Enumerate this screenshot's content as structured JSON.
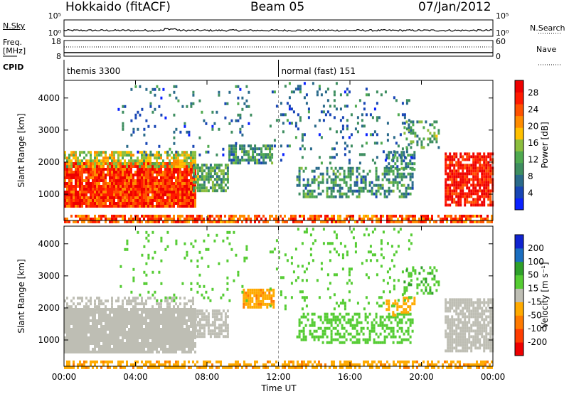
{
  "header": {
    "station": "Hokkaido (fitACF)",
    "beam": "Beam 05",
    "date": "07/Jan/2012"
  },
  "strip_labels": {
    "nsky": "N.Sky",
    "nsearch": "N.Search",
    "freq": "Freq.",
    "freq_unit": "[MHz]",
    "nave": "Nave",
    "cpid": "CPID",
    "nsky_ticks": [
      "10^5",
      "10^0"
    ],
    "nsearch_ticks": [
      "10^5",
      "10^0"
    ],
    "freq_ticks": [
      "18",
      "8"
    ],
    "nave_ticks": [
      "60",
      "0"
    ],
    "cpid_segments": [
      {
        "label": "themis 3300",
        "start_hour": 0
      },
      {
        "label": "normal (fast) 151",
        "start_hour": 12
      }
    ]
  },
  "chart_data": [
    {
      "type": "heatmap",
      "title": "Power",
      "xlabel": "",
      "ylabel": "Slant Range [km]",
      "x_ticks": [
        "00:00",
        "04:00",
        "08:00",
        "12:00",
        "16:00",
        "20:00",
        "00:00"
      ],
      "xlim_hours": [
        0,
        24
      ],
      "y_ticks": [
        1000,
        2000,
        3000,
        4000
      ],
      "ylim": [
        180,
        4550
      ],
      "colorbar": {
        "label": "Power [dB]",
        "ticks": [
          4,
          8,
          12,
          16,
          20,
          24,
          28
        ],
        "range": [
          0,
          31
        ],
        "colors": [
          "#0a22ff",
          "#1846b5",
          "#2a6a8a",
          "#3e8e60",
          "#4faa50",
          "#8cbe3e",
          "#ffc000",
          "#ff8c00",
          "#ff5200",
          "#ff1a00",
          "#ee0000"
        ]
      },
      "regions": [
        {
          "t": [
            0.0,
            7.3
          ],
          "r": [
            650,
            2000
          ],
          "level": 26,
          "density": 0.95
        },
        {
          "t": [
            0.0,
            7.3
          ],
          "r": [
            1900,
            2350
          ],
          "level": 16,
          "density": 0.7
        },
        {
          "t": [
            7.2,
            9.2
          ],
          "r": [
            1150,
            1950
          ],
          "level": 12,
          "density": 0.75
        },
        {
          "t": [
            9.2,
            11.7
          ],
          "r": [
            1950,
            2550
          ],
          "level": 10,
          "density": 0.7
        },
        {
          "t": [
            13.0,
            19.5
          ],
          "r": [
            950,
            1850
          ],
          "level": 10,
          "density": 0.45
        },
        {
          "t": [
            18.0,
            19.6
          ],
          "r": [
            1750,
            2350
          ],
          "level": 9,
          "density": 0.45
        },
        {
          "t": [
            21.3,
            24.0
          ],
          "r": [
            650,
            2300
          ],
          "level": 28,
          "density": 0.85
        },
        {
          "t": [
            0.0,
            24.0
          ],
          "r": [
            180,
            360
          ],
          "level": 24,
          "density": 0.7
        },
        {
          "t": [
            3.0,
            10.5
          ],
          "r": [
            2200,
            4400
          ],
          "level": 7,
          "density": 0.08
        },
        {
          "t": [
            11.5,
            19.5
          ],
          "r": [
            2000,
            4500
          ],
          "level": 7,
          "density": 0.1
        },
        {
          "t": [
            19.0,
            21.0
          ],
          "r": [
            2500,
            3300
          ],
          "level": 12,
          "density": 0.35
        }
      ]
    },
    {
      "type": "heatmap",
      "title": "Velocity",
      "xlabel": "Time UT",
      "ylabel": "Slant Range [km]",
      "x_ticks": [
        "00:00",
        "04:00",
        "08:00",
        "12:00",
        "16:00",
        "20:00",
        "00:00"
      ],
      "xlim_hours": [
        0,
        24
      ],
      "y_ticks": [
        1000,
        2000,
        3000,
        4000
      ],
      "ylim": [
        180,
        4550
      ],
      "colorbar": {
        "label": "Velocity [m s⁻¹]",
        "ticks": [
          "-200",
          "-100",
          "-50",
          "-15",
          "15",
          "50",
          "100",
          "200"
        ],
        "range": [
          -250,
          250
        ],
        "colors": [
          "#ee0000",
          "#ff3d00",
          "#ff7a00",
          "#ffaa00",
          "#bebeb4",
          "#55cc33",
          "#2ea02a",
          "#1a6ec0",
          "#1024d0"
        ]
      },
      "regions": [
        {
          "t": [
            0.0,
            7.3
          ],
          "r": [
            650,
            2000
          ],
          "level": 0,
          "density": 0.95
        },
        {
          "t": [
            0.0,
            7.3
          ],
          "r": [
            1900,
            2350
          ],
          "level": 0,
          "density": 0.5
        },
        {
          "t": [
            7.2,
            9.2
          ],
          "r": [
            1150,
            1950
          ],
          "level": 0,
          "density": 0.75
        },
        {
          "t": [
            10.0,
            11.7
          ],
          "r": [
            2000,
            2600
          ],
          "level": -40,
          "density": 0.8
        },
        {
          "t": [
            13.0,
            19.5
          ],
          "r": [
            950,
            1850
          ],
          "level": 30,
          "density": 0.45
        },
        {
          "t": [
            18.0,
            19.6
          ],
          "r": [
            1750,
            2350
          ],
          "level": -30,
          "density": 0.35
        },
        {
          "t": [
            21.3,
            24.0
          ],
          "r": [
            650,
            2300
          ],
          "level": 0,
          "density": 0.8
        },
        {
          "t": [
            0.0,
            24.0
          ],
          "r": [
            180,
            360
          ],
          "level": -40,
          "density": 0.55
        },
        {
          "t": [
            3.0,
            10.5
          ],
          "r": [
            2200,
            4400
          ],
          "level": 30,
          "density": 0.07
        },
        {
          "t": [
            11.5,
            19.5
          ],
          "r": [
            2000,
            4500
          ],
          "level": 30,
          "density": 0.08
        },
        {
          "t": [
            19.0,
            21.0
          ],
          "r": [
            2500,
            3300
          ],
          "level": 40,
          "density": 0.3
        }
      ]
    }
  ]
}
